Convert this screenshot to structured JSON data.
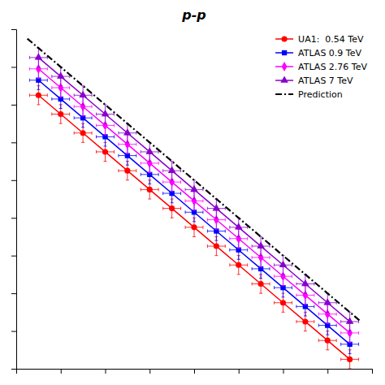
{
  "chart_data": {
    "type": "line",
    "title": "p-p",
    "series": [
      {
        "name": "UA1:  0.54 TeV",
        "color": "#ff0000",
        "marker": "circle",
        "x": [
          1,
          2,
          3,
          4,
          5,
          6,
          7,
          8,
          9,
          10,
          11,
          12,
          13,
          14,
          15
        ],
        "values": [
          14.5,
          13.5,
          12.5,
          11.5,
          10.5,
          9.5,
          8.5,
          7.5,
          6.5,
          5.5,
          4.5,
          3.5,
          2.5,
          1.5,
          0.5
        ],
        "xerr": 0.4,
        "yerr": 0.5
      },
      {
        "name": "ATLAS 0.9 TeV",
        "color": "#0000ff",
        "marker": "square",
        "x": [
          1,
          2,
          3,
          4,
          5,
          6,
          7,
          8,
          9,
          10,
          11,
          12,
          13,
          14,
          15
        ],
        "values": [
          15.3,
          14.3,
          13.3,
          12.3,
          11.3,
          10.3,
          9.3,
          8.3,
          7.3,
          6.3,
          5.3,
          4.3,
          3.3,
          2.3,
          1.3
        ],
        "xerr": 0.4,
        "yerr": 0.5
      },
      {
        "name": "ATLAS 2.76 TeV",
        "color": "#ff00ff",
        "marker": "diamond",
        "x": [
          1,
          2,
          3,
          4,
          5,
          6,
          7,
          8,
          9,
          10,
          11,
          12,
          13,
          14,
          15
        ],
        "values": [
          15.9,
          14.9,
          13.9,
          12.9,
          11.9,
          10.9,
          9.9,
          8.9,
          7.9,
          6.9,
          5.9,
          4.9,
          3.9,
          2.9,
          1.9
        ],
        "xerr": 0.4,
        "yerr": 0.5
      },
      {
        "name": "ATLAS 7 TeV",
        "color": "#8800cc",
        "marker": "triangle",
        "x": [
          1,
          2,
          3,
          4,
          5,
          6,
          7,
          8,
          9,
          10,
          11,
          12,
          13,
          14,
          15
        ],
        "values": [
          16.5,
          15.5,
          14.5,
          13.5,
          12.5,
          11.5,
          10.5,
          9.5,
          8.5,
          7.5,
          6.5,
          5.5,
          4.5,
          3.5,
          2.5
        ],
        "xerr": 0.4,
        "yerr": 0.5
      },
      {
        "name": "Prediction",
        "color": "#000000",
        "line_style": "dash-dot",
        "x": [
          0.5,
          1.5,
          2.5,
          3.5,
          4.5,
          5.5,
          6.5,
          7.5,
          8.5,
          9.5,
          10.5,
          11.5,
          12.5,
          13.5,
          14.5,
          15.5
        ],
        "values": [
          17.5,
          16.5,
          15.5,
          14.5,
          13.5,
          12.5,
          11.5,
          10.5,
          9.5,
          8.5,
          7.5,
          6.5,
          5.5,
          4.5,
          3.5,
          2.5
        ]
      }
    ],
    "xlim": [
      0,
      16
    ],
    "ylim": [
      0,
      18
    ],
    "xticks": [
      0,
      2,
      4,
      6,
      8,
      10,
      12,
      14,
      16
    ],
    "yticks": [
      0,
      2,
      4,
      6,
      8,
      10,
      12,
      14,
      16,
      18
    ],
    "tick_labels": false,
    "legend": "upper right"
  }
}
